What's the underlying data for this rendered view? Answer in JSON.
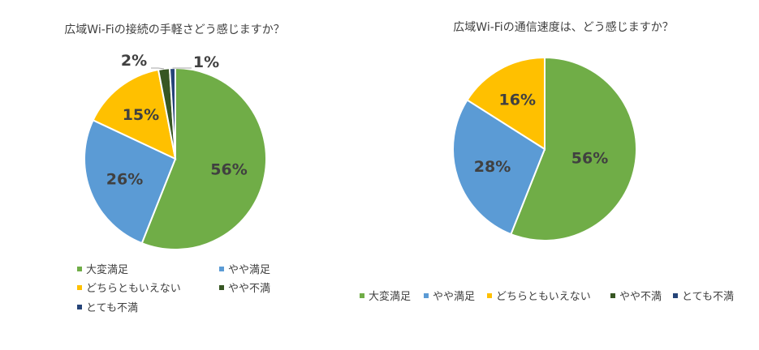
{
  "chart_data": [
    {
      "type": "pie",
      "title": "広域Wi-Fiの接続の手軽さどう感じますか？",
      "categories": [
        "大変満足",
        "やや満足",
        "どちらともいえない",
        "やや不満",
        "とても不満"
      ],
      "values": [
        56,
        26,
        15,
        2,
        1
      ],
      "labels": [
        "56%",
        "26%",
        "15%",
        "2%",
        "1%"
      ],
      "colors": [
        "#70ad47",
        "#5b9bd5",
        "#ffc000",
        "#375623",
        "#264478"
      ],
      "legend": "bottom"
    },
    {
      "type": "pie",
      "title": "広域Wi-Fiの通信速度は、どう感じますか？",
      "categories": [
        "大変満足",
        "やや満足",
        "どちらともいえない",
        "やや不満",
        "とても不満"
      ],
      "values": [
        56,
        28,
        16,
        0,
        0
      ],
      "labels": [
        "56%",
        "28%",
        "16%",
        "",
        ""
      ],
      "colors": [
        "#70ad47",
        "#5b9bd5",
        "#ffc000",
        "#375623",
        "#264478"
      ],
      "legend": "bottom"
    }
  ]
}
